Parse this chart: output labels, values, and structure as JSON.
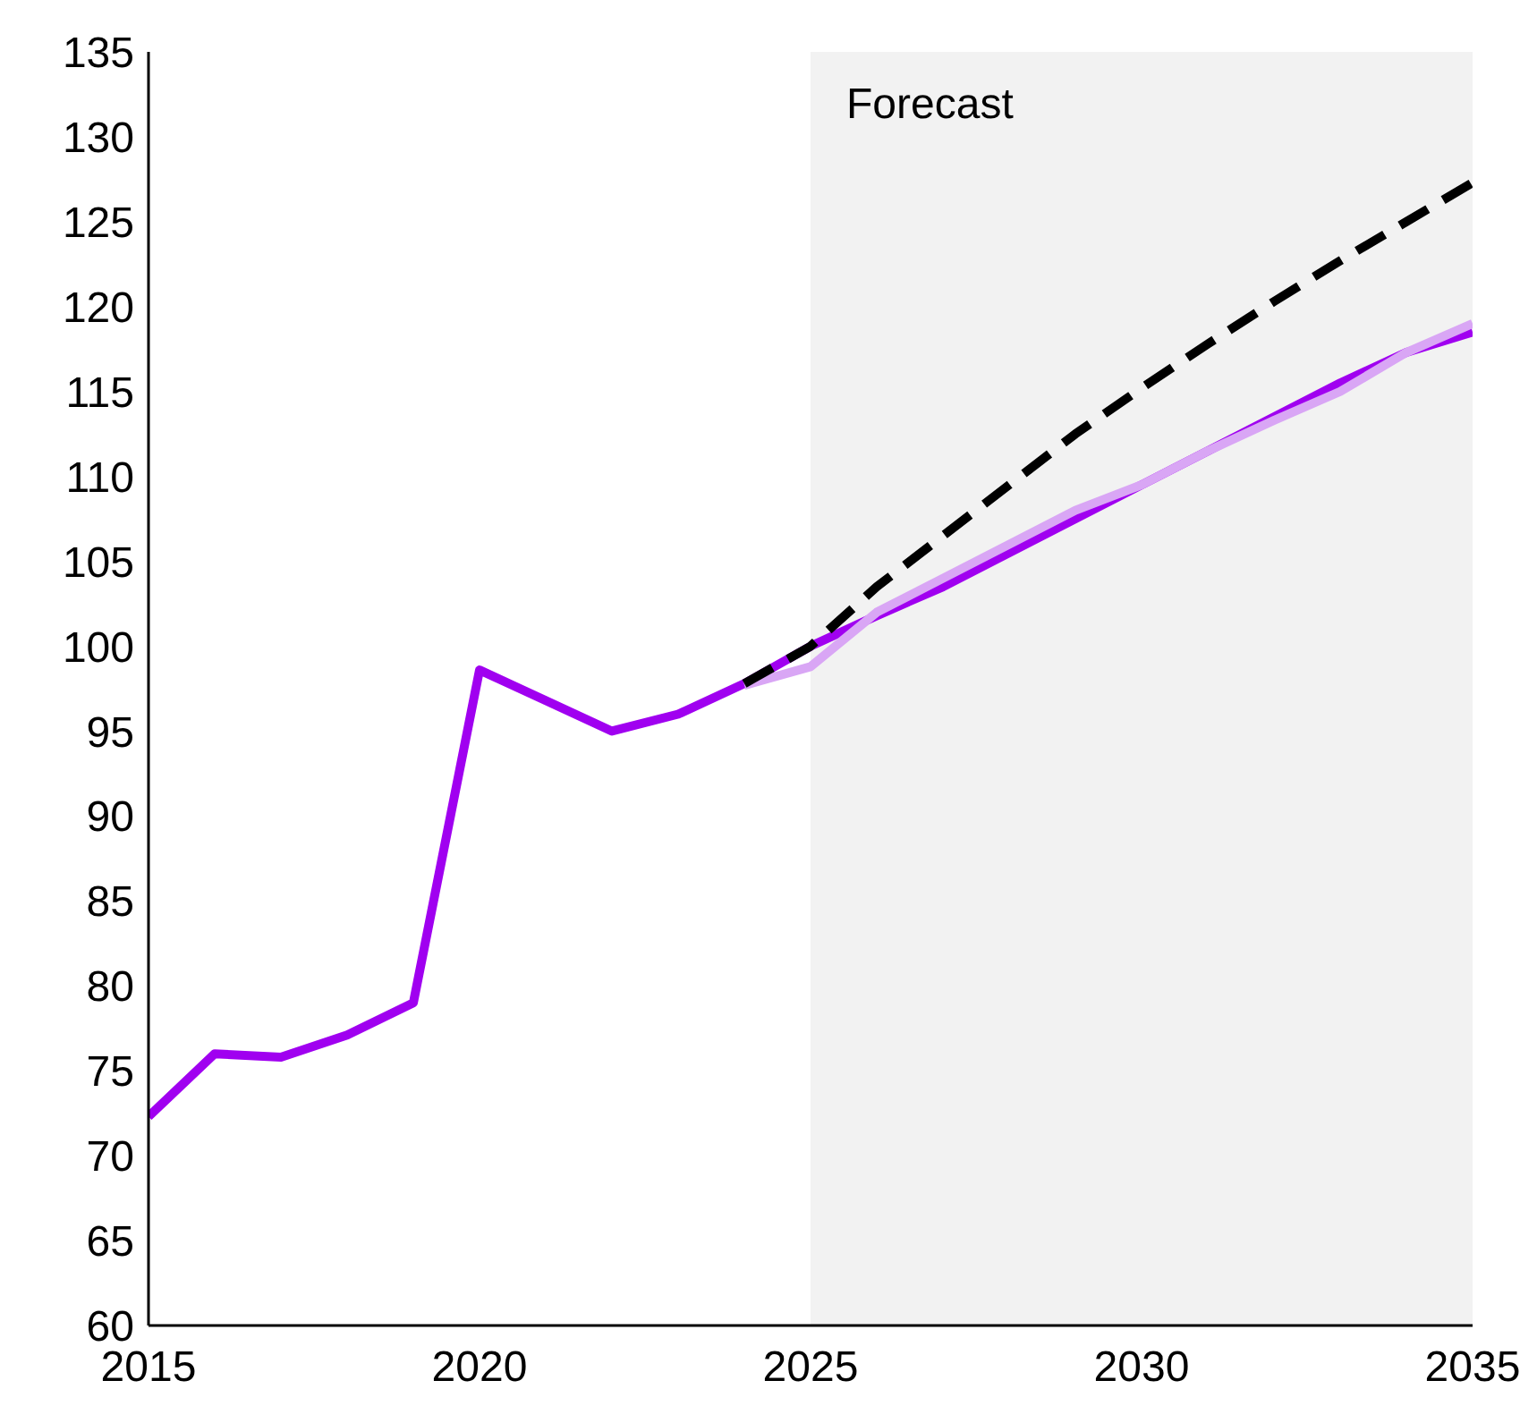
{
  "chart_data": {
    "type": "line",
    "x": [
      2015,
      2016,
      2017,
      2018,
      2019,
      2020,
      2021,
      2022,
      2023,
      2024,
      2025,
      2026,
      2027,
      2028,
      2029,
      2030,
      2031,
      2032,
      2033,
      2034,
      2035
    ],
    "series": [
      {
        "color": "#a000f0",
        "values": [
          72.3,
          76,
          75.8,
          77.1,
          79,
          98.6,
          96.8,
          95,
          96,
          97.8,
          100,
          101.8,
          103.5,
          105.5,
          107.5,
          109.5,
          111.5,
          113.5,
          115.5,
          117.3,
          118.5
        ]
      },
      {
        "color": "#d9a6f5",
        "values": [
          null,
          null,
          null,
          null,
          null,
          null,
          null,
          null,
          null,
          97.7,
          98.8,
          102,
          104,
          106,
          108,
          109.5,
          111.5,
          113.3,
          115,
          117.3,
          119
        ]
      },
      {
        "color": "#000000",
        "line_style": "dashed",
        "values": [
          null,
          null,
          null,
          null,
          null,
          null,
          null,
          null,
          null,
          97.8,
          100,
          103.5,
          106.5,
          109.5,
          112.5,
          115.2,
          117.8,
          120.3,
          122.7,
          125,
          127.3
        ]
      }
    ],
    "xlim": [
      2015,
      2035
    ],
    "xticks": [
      2015,
      2020,
      2025,
      2030,
      2035
    ],
    "ylim": [
      60,
      135
    ],
    "yticks": [
      60,
      65,
      70,
      75,
      80,
      85,
      90,
      95,
      100,
      105,
      110,
      115,
      120,
      125,
      130,
      135
    ],
    "bands": [
      {
        "axis": "x",
        "from": 2025,
        "to": 2035,
        "label": "Forecast",
        "color": "#f2f2f2"
      }
    ],
    "grid": false,
    "legend": false,
    "marker": "none"
  }
}
